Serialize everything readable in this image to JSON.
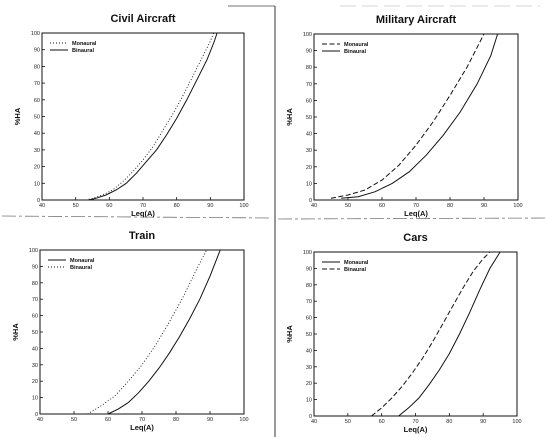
{
  "chart_data": [
    {
      "type": "line",
      "title": "Civil Aircraft",
      "xlabel": "Leq(A)",
      "ylabel": "%HA",
      "xlim": [
        40,
        100
      ],
      "ylim": [
        0,
        100
      ],
      "xticks": [
        40,
        50,
        60,
        70,
        80,
        90,
        100
      ],
      "yticks": [
        0,
        10,
        20,
        30,
        40,
        50,
        60,
        70,
        80,
        90,
        100
      ],
      "legend_position": "top-left",
      "grid": false,
      "series": [
        {
          "name": "Monaural",
          "style": "dotted",
          "x": [
            53,
            55,
            58,
            61,
            64,
            67,
            70,
            73,
            76,
            79,
            82,
            85,
            88,
            90,
            91
          ],
          "y": [
            0,
            1,
            3,
            6,
            11,
            17,
            24,
            32,
            42,
            52,
            63,
            75,
            87,
            95,
            100
          ]
        },
        {
          "name": "Binaural",
          "style": "solid",
          "x": [
            54,
            56,
            59,
            62,
            65,
            68,
            71,
            74,
            77,
            80,
            83,
            86,
            89,
            91,
            92
          ],
          "y": [
            0,
            1,
            3,
            6,
            10,
            16,
            23,
            30,
            39,
            49,
            60,
            72,
            84,
            94,
            100
          ]
        }
      ]
    },
    {
      "type": "line",
      "title": "Military Aircraft",
      "xlabel": "Leq(A)",
      "ylabel": "%HA",
      "xlim": [
        40,
        100
      ],
      "ylim": [
        0,
        100
      ],
      "xticks": [
        40,
        50,
        60,
        70,
        80,
        90,
        100
      ],
      "yticks": [
        0,
        10,
        20,
        30,
        40,
        50,
        60,
        70,
        80,
        90,
        100
      ],
      "legend_position": "top-left",
      "grid": false,
      "series": [
        {
          "name": "Monaural",
          "style": "dashed",
          "x": [
            45,
            50,
            55,
            60,
            65,
            70,
            75,
            80,
            85,
            88,
            90
          ],
          "y": [
            1,
            3,
            6,
            12,
            21,
            33,
            47,
            63,
            80,
            92,
            100
          ]
        },
        {
          "name": "Binaural",
          "style": "solid",
          "x": [
            48,
            53,
            58,
            63,
            68,
            73,
            78,
            83,
            88,
            92,
            94
          ],
          "y": [
            1,
            2,
            5,
            10,
            17,
            27,
            39,
            53,
            70,
            87,
            100
          ]
        }
      ]
    },
    {
      "type": "line",
      "title": "Train",
      "xlabel": "Leq(A)",
      "ylabel": "%HA",
      "xlim": [
        40,
        100
      ],
      "ylim": [
        0,
        100
      ],
      "xticks": [
        40,
        50,
        60,
        70,
        80,
        90,
        100
      ],
      "yticks": [
        0,
        10,
        20,
        30,
        40,
        50,
        60,
        70,
        80,
        90,
        100
      ],
      "legend_position": "top-left",
      "grid": false,
      "series": [
        {
          "name": "Monaural",
          "style": "solid",
          "x": [
            60,
            63,
            66,
            69,
            72,
            75,
            78,
            81,
            84,
            87,
            90,
            93
          ],
          "y": [
            0,
            3,
            7,
            13,
            20,
            28,
            37,
            47,
            58,
            70,
            84,
            100
          ]
        },
        {
          "name": "Binaural",
          "style": "dotted",
          "x": [
            54,
            58,
            62,
            66,
            70,
            74,
            78,
            82,
            86,
            89
          ],
          "y": [
            0,
            5,
            11,
            20,
            30,
            42,
            56,
            71,
            88,
            100
          ]
        }
      ]
    },
    {
      "type": "line",
      "title": "Cars",
      "xlabel": "Leq(A)",
      "ylabel": "%HA",
      "xlim": [
        40,
        100
      ],
      "ylim": [
        0,
        100
      ],
      "xticks": [
        40,
        50,
        60,
        70,
        80,
        90,
        100
      ],
      "yticks": [
        0,
        10,
        20,
        30,
        40,
        50,
        60,
        70,
        80,
        90,
        100
      ],
      "legend_position": "top-left",
      "grid": false,
      "series": [
        {
          "name": "Monaural",
          "style": "solid",
          "x": [
            65,
            68,
            71,
            74,
            77,
            80,
            83,
            86,
            89,
            92,
            95
          ],
          "y": [
            0,
            5,
            11,
            19,
            28,
            38,
            50,
            63,
            77,
            90,
            100
          ]
        },
        {
          "name": "Binaural",
          "style": "dashed",
          "x": [
            57,
            60,
            63,
            66,
            69,
            72,
            75,
            78,
            81,
            84,
            87,
            90,
            92
          ],
          "y": [
            0,
            5,
            11,
            18,
            26,
            35,
            45,
            56,
            67,
            78,
            88,
            96,
            100
          ]
        }
      ]
    }
  ]
}
